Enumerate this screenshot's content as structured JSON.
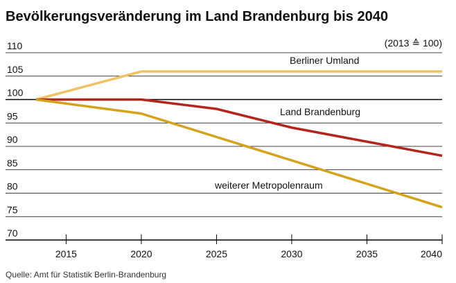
{
  "chart_data": {
    "type": "line",
    "title": "Bevölkerungsveränderung im Land Brandenburg bis 2040",
    "annotation": "(2013 ≙ 100)",
    "source": "Quelle: Amt für Statistik Berlin-Brandenburg",
    "x": [
      2013,
      2020,
      2025,
      2030,
      2035,
      2040
    ],
    "series": [
      {
        "name": "Berliner Umland",
        "color": "#f0c266",
        "values": [
          100,
          106,
          106,
          106,
          106,
          106
        ]
      },
      {
        "name": "Land Brandenburg",
        "color": "#b3261e",
        "values": [
          100,
          100,
          98,
          94,
          91,
          88
        ]
      },
      {
        "name": "weiterer Metropolenraum",
        "color": "#d4a21c",
        "values": [
          100,
          97,
          92,
          87,
          82,
          77
        ]
      }
    ],
    "xlim": [
      2013,
      2040
    ],
    "xticks": [
      2015,
      2020,
      2025,
      2030,
      2035,
      2040
    ],
    "ylim": [
      70,
      110
    ],
    "yticks": [
      70,
      75,
      80,
      85,
      90,
      95,
      100,
      105,
      110
    ],
    "grid": true
  }
}
